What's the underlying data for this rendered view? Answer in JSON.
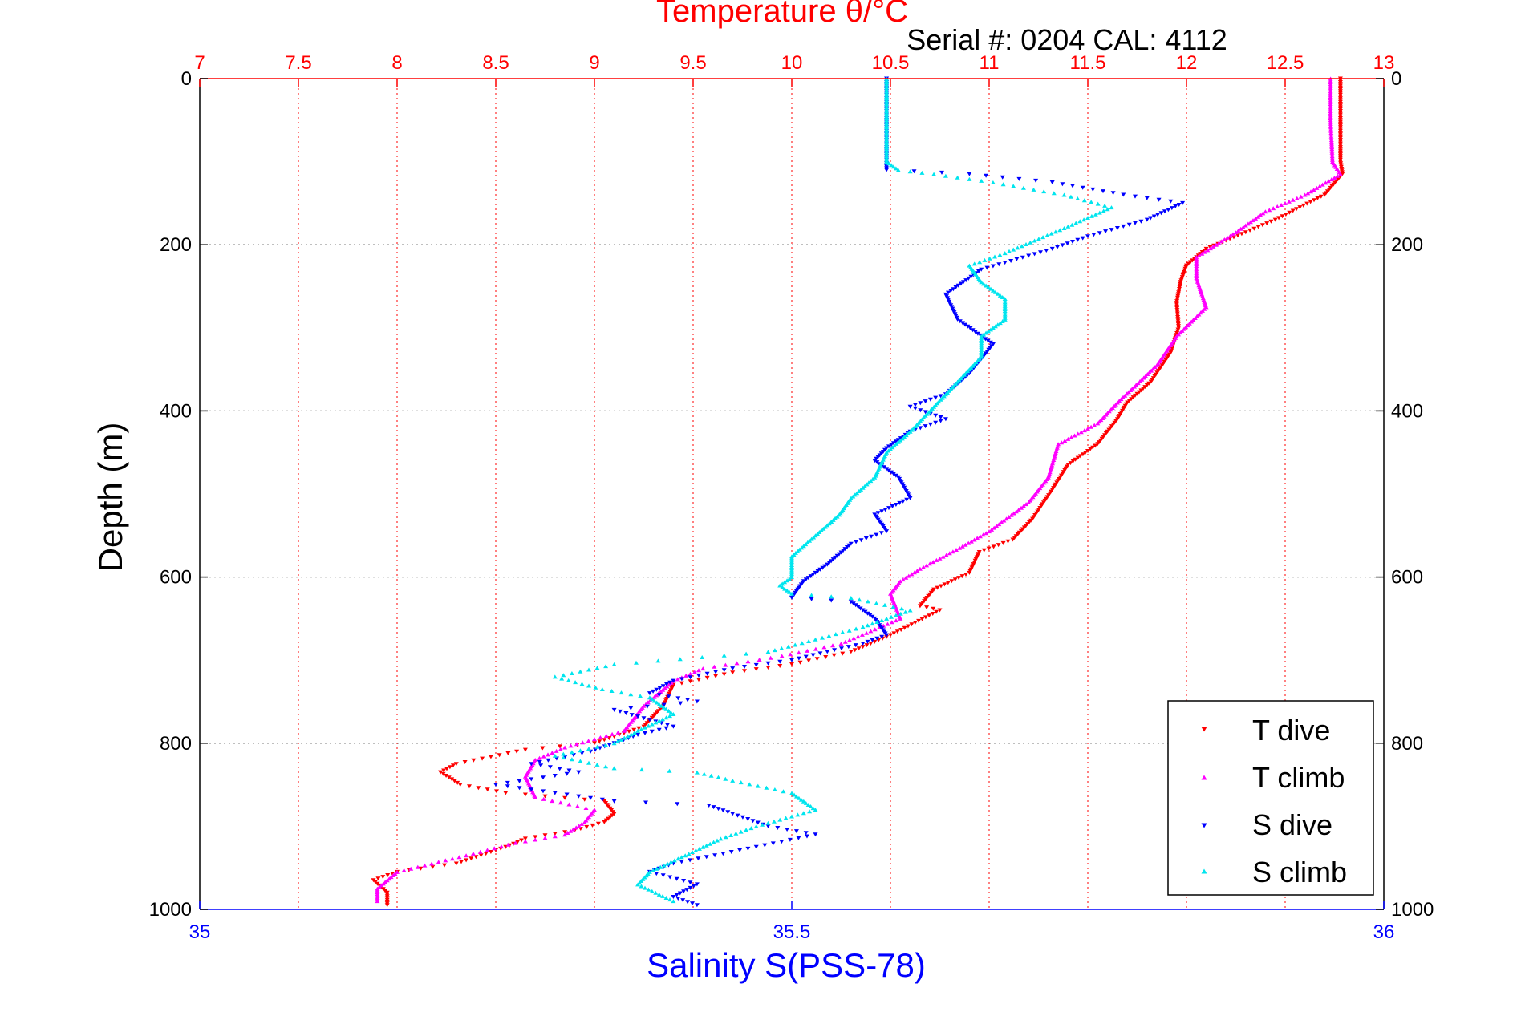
{
  "chart_data": {
    "type": "scatter",
    "title": "Temperature θ/°C",
    "subtitle": "Serial #: 0204  CAL: 4112",
    "ylabel": "Depth (m)",
    "xlabel_bottom": "Salinity S(PSS-78)",
    "xlabel_top": "Temperature θ/°C",
    "ylim": [
      0,
      1000
    ],
    "y_reversed": true,
    "y_ticks": [
      "0",
      "200",
      "400",
      "600",
      "800",
      "1000"
    ],
    "temp_axis": {
      "lim": [
        7,
        13
      ],
      "ticks": [
        "7",
        "7.5",
        "8",
        "8.5",
        "9",
        "9.5",
        "10",
        "10.5",
        "11",
        "11.5",
        "12",
        "12.5",
        "13"
      ]
    },
    "sal_axis": {
      "lim": [
        35,
        36
      ],
      "ticks": [
        "35",
        "35.5",
        "36"
      ]
    },
    "grid": true,
    "legend_position": "bottom-right",
    "colors": {
      "t_dive": "#ff0000",
      "t_climb": "#ff00ff",
      "s_dive": "#0000ff",
      "s_climb": "#00e5ee",
      "temp_axis": "#ff0000",
      "sal_axis": "#0000ff"
    },
    "series": [
      {
        "name": "T dive",
        "axis": "temp",
        "marker": "triangle-down",
        "points": [
          [
            12.78,
            0
          ],
          [
            12.78,
            50
          ],
          [
            12.78,
            100
          ],
          [
            12.79,
            115
          ],
          [
            12.7,
            140
          ],
          [
            12.45,
            170
          ],
          [
            12.3,
            185
          ],
          [
            12.1,
            205
          ],
          [
            12.0,
            225
          ],
          [
            11.97,
            245
          ],
          [
            11.95,
            270
          ],
          [
            11.96,
            300
          ],
          [
            11.92,
            330
          ],
          [
            11.82,
            365
          ],
          [
            11.7,
            390
          ],
          [
            11.65,
            410
          ],
          [
            11.55,
            440
          ],
          [
            11.4,
            465
          ],
          [
            11.32,
            495
          ],
          [
            11.22,
            530
          ],
          [
            11.12,
            555
          ],
          [
            10.95,
            570
          ],
          [
            10.9,
            595
          ],
          [
            10.72,
            615
          ],
          [
            10.65,
            635
          ],
          [
            10.75,
            640
          ],
          [
            10.5,
            670
          ],
          [
            10.3,
            690
          ],
          [
            10.0,
            705
          ],
          [
            9.7,
            715
          ],
          [
            9.4,
            730
          ],
          [
            9.35,
            755
          ],
          [
            9.25,
            780
          ],
          [
            9.0,
            800
          ],
          [
            8.65,
            808
          ],
          [
            8.3,
            825
          ],
          [
            8.22,
            835
          ],
          [
            8.32,
            850
          ],
          [
            8.55,
            860
          ],
          [
            9.05,
            870
          ],
          [
            9.1,
            885
          ],
          [
            9.05,
            895
          ],
          [
            8.9,
            905
          ],
          [
            8.65,
            915
          ],
          [
            8.55,
            925
          ],
          [
            8.3,
            945
          ],
          [
            8.0,
            955
          ],
          [
            7.88,
            965
          ],
          [
            7.95,
            980
          ],
          [
            7.95,
            995
          ]
        ]
      },
      {
        "name": "T climb",
        "axis": "temp",
        "marker": "triangle-up",
        "points": [
          [
            12.73,
            0
          ],
          [
            12.73,
            50
          ],
          [
            12.74,
            100
          ],
          [
            12.78,
            115
          ],
          [
            12.6,
            140
          ],
          [
            12.4,
            160
          ],
          [
            12.25,
            185
          ],
          [
            12.15,
            200
          ],
          [
            12.05,
            215
          ],
          [
            12.05,
            240
          ],
          [
            12.1,
            275
          ],
          [
            11.95,
            310
          ],
          [
            11.85,
            345
          ],
          [
            11.65,
            390
          ],
          [
            11.55,
            415
          ],
          [
            11.35,
            440
          ],
          [
            11.3,
            480
          ],
          [
            11.2,
            510
          ],
          [
            11.0,
            545
          ],
          [
            10.85,
            565
          ],
          [
            10.65,
            590
          ],
          [
            10.55,
            605
          ],
          [
            10.5,
            620
          ],
          [
            10.55,
            650
          ],
          [
            10.25,
            680
          ],
          [
            9.95,
            695
          ],
          [
            9.55,
            710
          ],
          [
            9.4,
            725
          ],
          [
            9.25,
            755
          ],
          [
            9.15,
            785
          ],
          [
            8.85,
            805
          ],
          [
            8.7,
            820
          ],
          [
            8.65,
            840
          ],
          [
            8.7,
            865
          ],
          [
            9.0,
            880
          ],
          [
            8.95,
            895
          ],
          [
            8.85,
            910
          ],
          [
            8.6,
            920
          ],
          [
            8.35,
            935
          ],
          [
            8.0,
            955
          ],
          [
            7.9,
            975
          ],
          [
            7.9,
            990
          ]
        ]
      },
      {
        "name": "S dive",
        "axis": "sal",
        "marker": "triangle-down",
        "points": [
          [
            35.58,
            0
          ],
          [
            35.58,
            50
          ],
          [
            35.58,
            100
          ],
          [
            35.58,
            110
          ],
          [
            35.65,
            115
          ],
          [
            35.72,
            125
          ],
          [
            35.78,
            140
          ],
          [
            35.83,
            150
          ],
          [
            35.8,
            170
          ],
          [
            35.75,
            190
          ],
          [
            35.72,
            205
          ],
          [
            35.66,
            230
          ],
          [
            35.63,
            260
          ],
          [
            35.64,
            290
          ],
          [
            35.67,
            320
          ],
          [
            35.65,
            355
          ],
          [
            35.63,
            380
          ],
          [
            35.6,
            395
          ],
          [
            35.63,
            410
          ],
          [
            35.6,
            425
          ],
          [
            35.58,
            445
          ],
          [
            35.57,
            460
          ],
          [
            35.59,
            480
          ],
          [
            35.6,
            505
          ],
          [
            35.57,
            525
          ],
          [
            35.58,
            545
          ],
          [
            35.55,
            560
          ],
          [
            35.53,
            585
          ],
          [
            35.51,
            605
          ],
          [
            35.5,
            625
          ],
          [
            35.55,
            630
          ],
          [
            35.57,
            650
          ],
          [
            35.58,
            670
          ],
          [
            35.56,
            680
          ],
          [
            35.5,
            700
          ],
          [
            35.45,
            710
          ],
          [
            35.4,
            725
          ],
          [
            35.38,
            740
          ],
          [
            35.42,
            750
          ],
          [
            35.35,
            760
          ],
          [
            35.4,
            780
          ],
          [
            35.37,
            790
          ],
          [
            35.33,
            810
          ],
          [
            35.28,
            825
          ],
          [
            35.32,
            835
          ],
          [
            35.25,
            850
          ],
          [
            35.35,
            870
          ],
          [
            35.43,
            875
          ],
          [
            35.45,
            885
          ],
          [
            35.48,
            900
          ],
          [
            35.52,
            910
          ],
          [
            35.47,
            925
          ],
          [
            35.4,
            945
          ],
          [
            35.38,
            955
          ],
          [
            35.42,
            970
          ],
          [
            35.4,
            985
          ],
          [
            35.42,
            995
          ]
        ]
      },
      {
        "name": "S climb",
        "axis": "sal",
        "marker": "triangle-up",
        "points": [
          [
            35.58,
            0
          ],
          [
            35.58,
            50
          ],
          [
            35.58,
            100
          ],
          [
            35.59,
            110
          ],
          [
            35.62,
            115
          ],
          [
            35.67,
            125
          ],
          [
            35.73,
            140
          ],
          [
            35.77,
            155
          ],
          [
            35.73,
            180
          ],
          [
            35.68,
            210
          ],
          [
            35.65,
            225
          ],
          [
            35.66,
            245
          ],
          [
            35.68,
            265
          ],
          [
            35.68,
            290
          ],
          [
            35.66,
            310
          ],
          [
            35.66,
            335
          ],
          [
            35.64,
            365
          ],
          [
            35.62,
            395
          ],
          [
            35.6,
            425
          ],
          [
            35.58,
            450
          ],
          [
            35.57,
            480
          ],
          [
            35.55,
            505
          ],
          [
            35.54,
            525
          ],
          [
            35.52,
            550
          ],
          [
            35.5,
            575
          ],
          [
            35.5,
            600
          ],
          [
            35.49,
            610
          ],
          [
            35.5,
            620
          ],
          [
            35.55,
            625
          ],
          [
            35.6,
            640
          ],
          [
            35.56,
            660
          ],
          [
            35.48,
            690
          ],
          [
            35.35,
            705
          ],
          [
            35.3,
            720
          ],
          [
            35.34,
            735
          ],
          [
            35.38,
            745
          ],
          [
            35.4,
            765
          ],
          [
            35.37,
            785
          ],
          [
            35.35,
            800
          ],
          [
            35.3,
            815
          ],
          [
            35.35,
            830
          ],
          [
            35.42,
            835
          ],
          [
            35.45,
            845
          ],
          [
            35.5,
            860
          ],
          [
            35.52,
            880
          ],
          [
            35.47,
            900
          ],
          [
            35.44,
            915
          ],
          [
            35.41,
            935
          ],
          [
            35.38,
            955
          ],
          [
            35.37,
            970
          ],
          [
            35.4,
            990
          ]
        ]
      }
    ]
  }
}
